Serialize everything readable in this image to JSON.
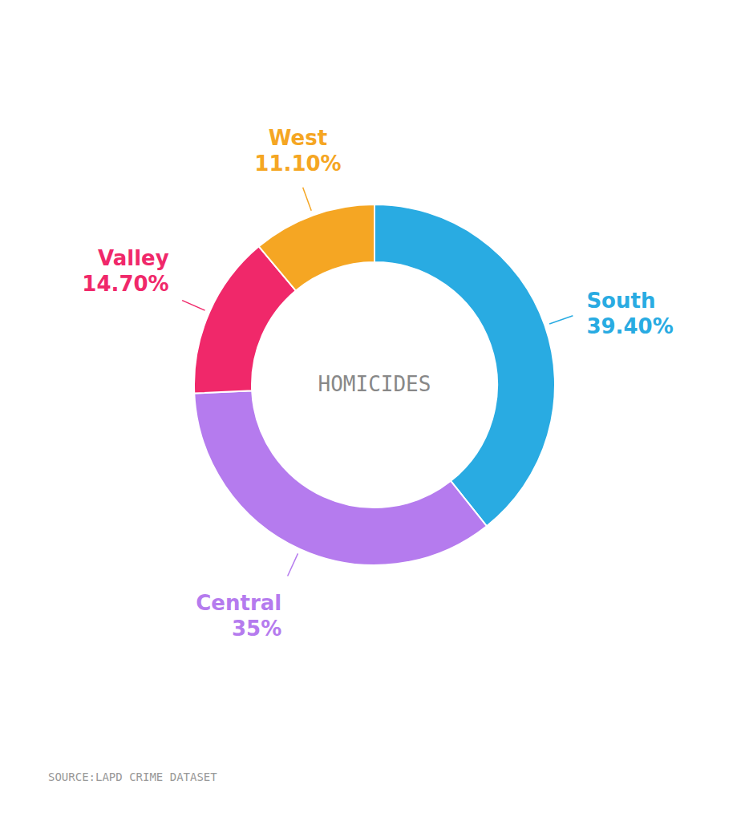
{
  "chart_data": {
    "type": "donut",
    "categories": [
      "South",
      "Central",
      "Valley",
      "West"
    ],
    "values": [
      39.4,
      35.0,
      14.7,
      11.1
    ],
    "value_labels": [
      "39.40%",
      "35%",
      "14.70%",
      "11.10%"
    ],
    "colors": [
      "#29ABE2",
      "#B57BEE",
      "#F0286A",
      "#F5A623"
    ],
    "data_labels": true,
    "annotations": [
      "HOMICIDES",
      "SOURCE:LAPD CRIME DATASET"
    ]
  }
}
